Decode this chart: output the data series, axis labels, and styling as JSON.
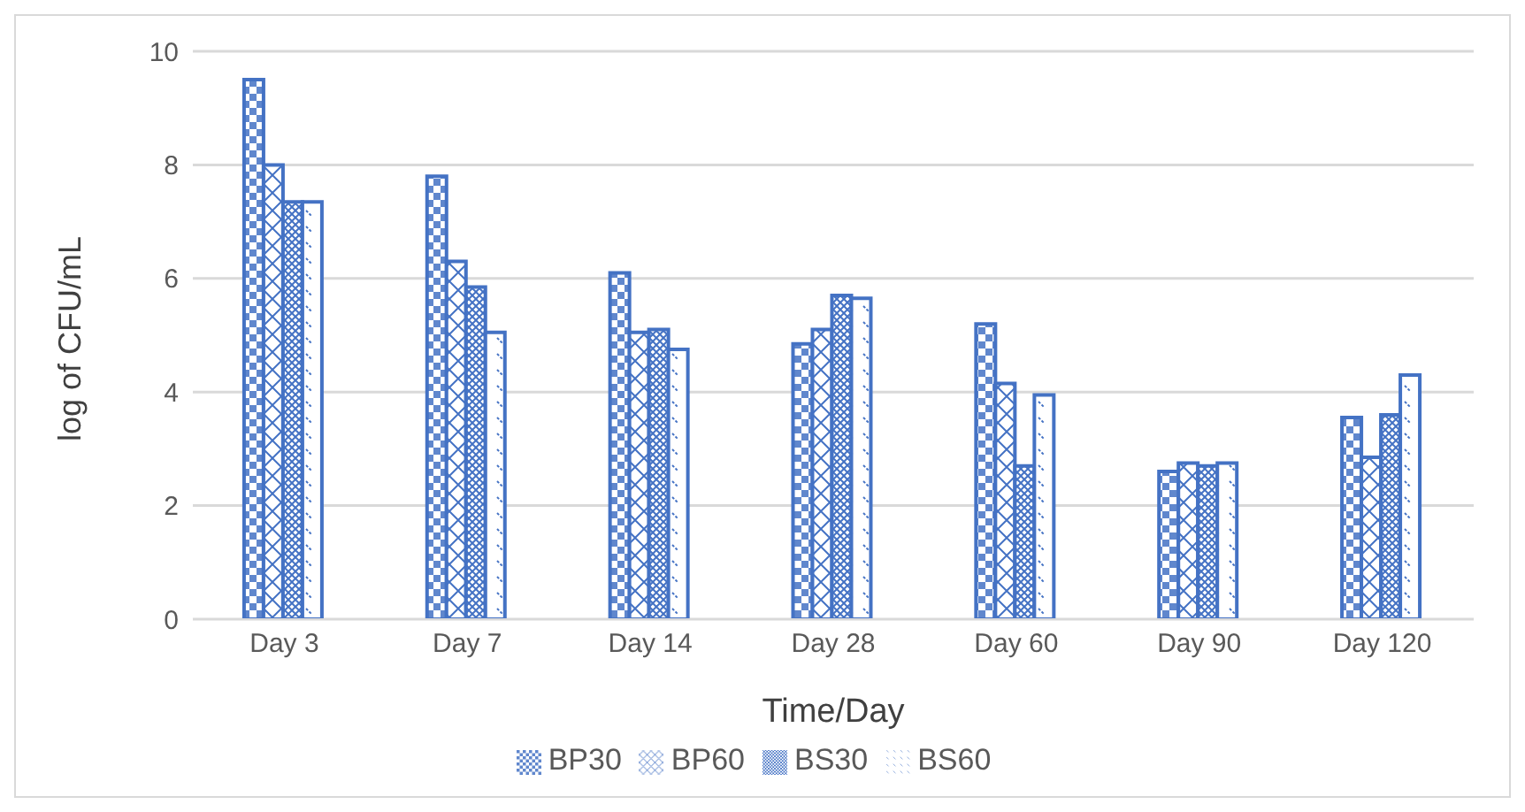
{
  "chart_data": {
    "type": "bar",
    "xlabel": "Time/Day",
    "ylabel": "log of CFU/mL",
    "categories": [
      "Day 3",
      "Day 7",
      "Day 14",
      "Day 28",
      "Day 60",
      "Day 90",
      "Day 120"
    ],
    "series": [
      {
        "name": "BP30",
        "color": "#4472c4",
        "values": [
          9.5,
          7.8,
          6.1,
          4.85,
          5.2,
          2.6,
          3.55
        ]
      },
      {
        "name": "BP60",
        "color": "#4472c4",
        "values": [
          8.0,
          6.3,
          5.05,
          5.1,
          4.15,
          2.75,
          2.85
        ]
      },
      {
        "name": "BS30",
        "color": "#4472c4",
        "values": [
          7.35,
          5.85,
          5.1,
          5.7,
          2.7,
          2.7,
          3.6
        ]
      },
      {
        "name": "BS60",
        "color": "#4472c4",
        "values": [
          7.35,
          5.05,
          4.75,
          5.65,
          3.95,
          2.75,
          4.3
        ]
      }
    ],
    "ylim": [
      0,
      10
    ],
    "yticks": [
      0,
      2,
      4,
      6,
      8,
      10
    ],
    "grid": "y",
    "legend": "bottom"
  }
}
